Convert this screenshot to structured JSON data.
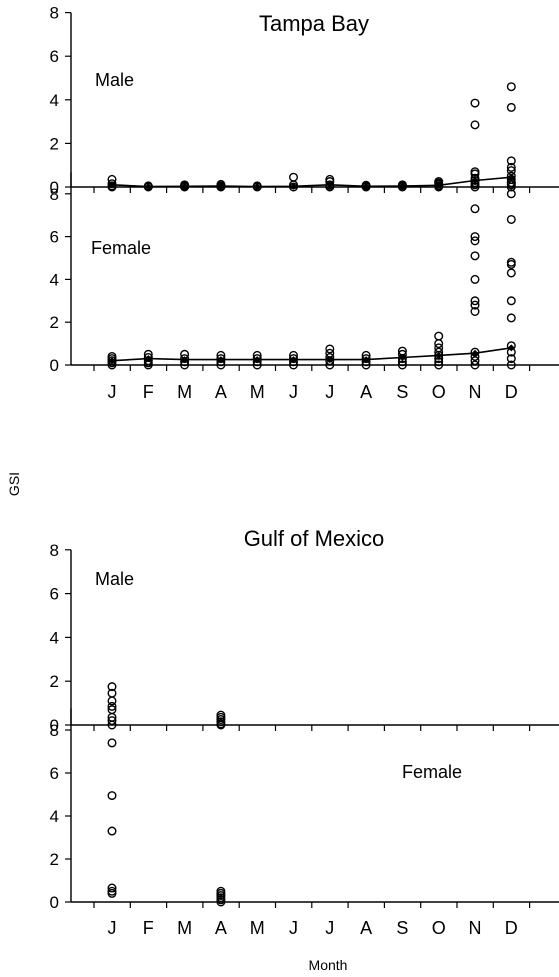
{
  "chart_data": [
    {
      "type": "scatter",
      "title": "Tampa Bay",
      "months": [
        "J",
        "F",
        "M",
        "A",
        "M",
        "J",
        "J",
        "A",
        "S",
        "O",
        "N",
        "D"
      ],
      "panels": [
        {
          "label": "Male",
          "ylim": [
            0,
            8
          ],
          "yticks": [
            0,
            2,
            4,
            6,
            8
          ],
          "points": [
            [
              0,
              0.35
            ],
            [
              0,
              0.15
            ],
            [
              0,
              0.05
            ],
            [
              0,
              0
            ],
            [
              1,
              0.05
            ],
            [
              1,
              0.02
            ],
            [
              1,
              0
            ],
            [
              2,
              0.1
            ],
            [
              2,
              0.05
            ],
            [
              2,
              0.02
            ],
            [
              2,
              0
            ],
            [
              3,
              0.12
            ],
            [
              3,
              0.06
            ],
            [
              3,
              0.02
            ],
            [
              3,
              0
            ],
            [
              4,
              0.05
            ],
            [
              4,
              0.02
            ],
            [
              4,
              0
            ],
            [
              5,
              0.45
            ],
            [
              5,
              0.1
            ],
            [
              5,
              0
            ],
            [
              6,
              0.35
            ],
            [
              6,
              0.25
            ],
            [
              6,
              0.1
            ],
            [
              6,
              0.03
            ],
            [
              6,
              0
            ],
            [
              7,
              0.08
            ],
            [
              7,
              0.03
            ],
            [
              7,
              0
            ],
            [
              8,
              0.1
            ],
            [
              8,
              0.05
            ],
            [
              8,
              0
            ],
            [
              9,
              0.25
            ],
            [
              9,
              0.18
            ],
            [
              9,
              0.12
            ],
            [
              9,
              0.05
            ],
            [
              9,
              0
            ],
            [
              10,
              3.85
            ],
            [
              10,
              2.85
            ],
            [
              10,
              0.7
            ],
            [
              10,
              0.6
            ],
            [
              10,
              0.4
            ],
            [
              10,
              0.3
            ],
            [
              10,
              0.2
            ],
            [
              10,
              0.1
            ],
            [
              10,
              0
            ],
            [
              11,
              4.6
            ],
            [
              11,
              3.65
            ],
            [
              11,
              1.2
            ],
            [
              11,
              0.9
            ],
            [
              11,
              0.75
            ],
            [
              11,
              0.5
            ],
            [
              11,
              0.35
            ],
            [
              11,
              0.2
            ],
            [
              11,
              0.1
            ],
            [
              11,
              0
            ]
          ],
          "mean_line": [
            0.1,
            0.02,
            0.03,
            0.04,
            0.02,
            0.03,
            0.1,
            0.03,
            0.04,
            0.08,
            0.3,
            0.45
          ]
        },
        {
          "label": "Female",
          "ylim": [
            0,
            9
          ],
          "yticks": [
            0,
            2,
            4,
            6,
            8
          ],
          "points": [
            [
              0,
              0.4
            ],
            [
              0,
              0.3
            ],
            [
              0,
              0.2
            ],
            [
              0,
              0.1
            ],
            [
              0,
              0
            ],
            [
              1,
              0.5
            ],
            [
              1,
              0.35
            ],
            [
              1,
              0.2
            ],
            [
              1,
              0.1
            ],
            [
              1,
              0
            ],
            [
              2,
              0.5
            ],
            [
              2,
              0.3
            ],
            [
              2,
              0.15
            ],
            [
              2,
              0
            ],
            [
              3,
              0.45
            ],
            [
              3,
              0.3
            ],
            [
              3,
              0.15
            ],
            [
              3,
              0
            ],
            [
              4,
              0.45
            ],
            [
              4,
              0.3
            ],
            [
              4,
              0.15
            ],
            [
              4,
              0
            ],
            [
              5,
              0.45
            ],
            [
              5,
              0.3
            ],
            [
              5,
              0.15
            ],
            [
              5,
              0
            ],
            [
              6,
              0.75
            ],
            [
              6,
              0.55
            ],
            [
              6,
              0.35
            ],
            [
              6,
              0.2
            ],
            [
              6,
              0
            ],
            [
              7,
              0.45
            ],
            [
              7,
              0.3
            ],
            [
              7,
              0.15
            ],
            [
              7,
              0
            ],
            [
              8,
              0.65
            ],
            [
              8,
              0.5
            ],
            [
              8,
              0.3
            ],
            [
              8,
              0.15
            ],
            [
              8,
              0
            ],
            [
              9,
              1.35
            ],
            [
              9,
              1.0
            ],
            [
              9,
              0.8
            ],
            [
              9,
              0.6
            ],
            [
              9,
              0.45
            ],
            [
              9,
              0.3
            ],
            [
              9,
              0.15
            ],
            [
              9,
              0
            ],
            [
              10,
              7.3
            ],
            [
              10,
              6.0
            ],
            [
              10,
              5.8
            ],
            [
              10,
              5.1
            ],
            [
              10,
              4.0
            ],
            [
              10,
              3.0
            ],
            [
              10,
              2.8
            ],
            [
              10,
              2.5
            ],
            [
              10,
              0.6
            ],
            [
              10,
              0.4
            ],
            [
              10,
              0.2
            ],
            [
              10,
              0
            ],
            [
              11,
              8.5
            ],
            [
              11,
              8.0
            ],
            [
              11,
              6.8
            ],
            [
              11,
              4.8
            ],
            [
              11,
              4.7
            ],
            [
              11,
              4.3
            ],
            [
              11,
              3.0
            ],
            [
              11,
              2.2
            ],
            [
              11,
              0.9
            ],
            [
              11,
              0.6
            ],
            [
              11,
              0.3
            ],
            [
              11,
              0
            ]
          ],
          "mean_line": [
            0.2,
            0.3,
            0.25,
            0.25,
            0.25,
            0.25,
            0.25,
            0.25,
            0.35,
            0.45,
            0.55,
            0.8
          ]
        }
      ]
    },
    {
      "type": "scatter",
      "title": "Gulf of Mexico",
      "months": [
        "J",
        "F",
        "M",
        "A",
        "M",
        "J",
        "J",
        "A",
        "S",
        "O",
        "N",
        "D"
      ],
      "panels": [
        {
          "label": "Male",
          "ylim": [
            0,
            8
          ],
          "yticks": [
            0,
            2,
            4,
            6,
            8
          ],
          "points": [
            [
              0,
              1.75
            ],
            [
              0,
              1.45
            ],
            [
              0,
              1.1
            ],
            [
              0,
              0.85
            ],
            [
              0,
              0.7
            ],
            [
              0,
              0.35
            ],
            [
              0,
              0.2
            ],
            [
              0,
              0
            ],
            [
              3,
              0.45
            ],
            [
              3,
              0.35
            ],
            [
              3,
              0.25
            ],
            [
              3,
              0.15
            ],
            [
              3,
              0.05
            ],
            [
              3,
              0
            ]
          ],
          "mean_line": []
        },
        {
          "label": "Female",
          "ylim": [
            0,
            9
          ],
          "yticks": [
            0,
            2,
            4,
            6,
            8
          ],
          "points": [
            [
              0,
              7.4
            ],
            [
              0,
              4.95
            ],
            [
              0,
              3.3
            ],
            [
              0,
              0.65
            ],
            [
              0,
              0.5
            ],
            [
              0,
              0.4
            ],
            [
              3,
              0.5
            ],
            [
              3,
              0.4
            ],
            [
              3,
              0.3
            ],
            [
              3,
              0.2
            ],
            [
              3,
              0.1
            ],
            [
              3,
              0
            ]
          ],
          "mean_line": []
        }
      ]
    }
  ],
  "axes": {
    "ylabel": "GSI",
    "xlabel": "Month"
  }
}
